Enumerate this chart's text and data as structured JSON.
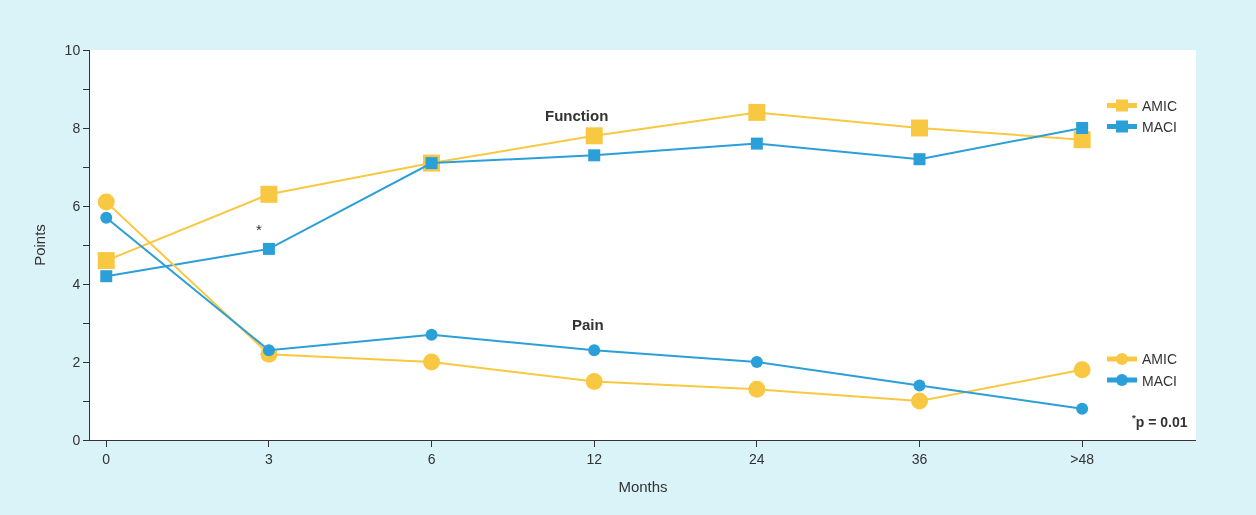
{
  "chart_data": {
    "type": "line",
    "xlabel": "Months",
    "ylabel": "Points",
    "categories": [
      "0",
      "3",
      "6",
      "12",
      "24",
      "36",
      ">48"
    ],
    "ylim": [
      0,
      10
    ],
    "yticks": [
      0,
      {
        "value": 1,
        "label": null
      },
      2,
      {
        "value": 3,
        "label": null
      },
      4,
      {
        "value": 5,
        "label": null
      },
      6,
      {
        "value": 7,
        "label": null
      },
      8,
      {
        "value": 9,
        "label": null
      },
      10
    ],
    "legend": "right",
    "series": [
      {
        "name": "AMIC",
        "color": "#f9c842",
        "marker": "square",
        "values": [
          4.6,
          6.3,
          7.1,
          7.8,
          8.4,
          8.0,
          7.7
        ]
      },
      {
        "name": "MACI",
        "color": "#2b9fd8",
        "marker": "square",
        "values": [
          4.2,
          4.9,
          7.1,
          7.3,
          7.6,
          7.2,
          8.0
        ]
      },
      {
        "name": "AMIC",
        "color": "#f9c842",
        "marker": "circle",
        "values": [
          6.1,
          2.2,
          2.0,
          1.5,
          1.3,
          1.0,
          1.8
        ]
      },
      {
        "name": "MACI",
        "color": "#2b9fd8",
        "marker": "circle",
        "values": [
          5.7,
          2.3,
          2.7,
          2.3,
          2.0,
          1.4,
          0.8
        ]
      }
    ],
    "annotations": [
      "Function",
      "Pain",
      "*",
      "$^{*}$p = 0.01"
    ]
  }
}
